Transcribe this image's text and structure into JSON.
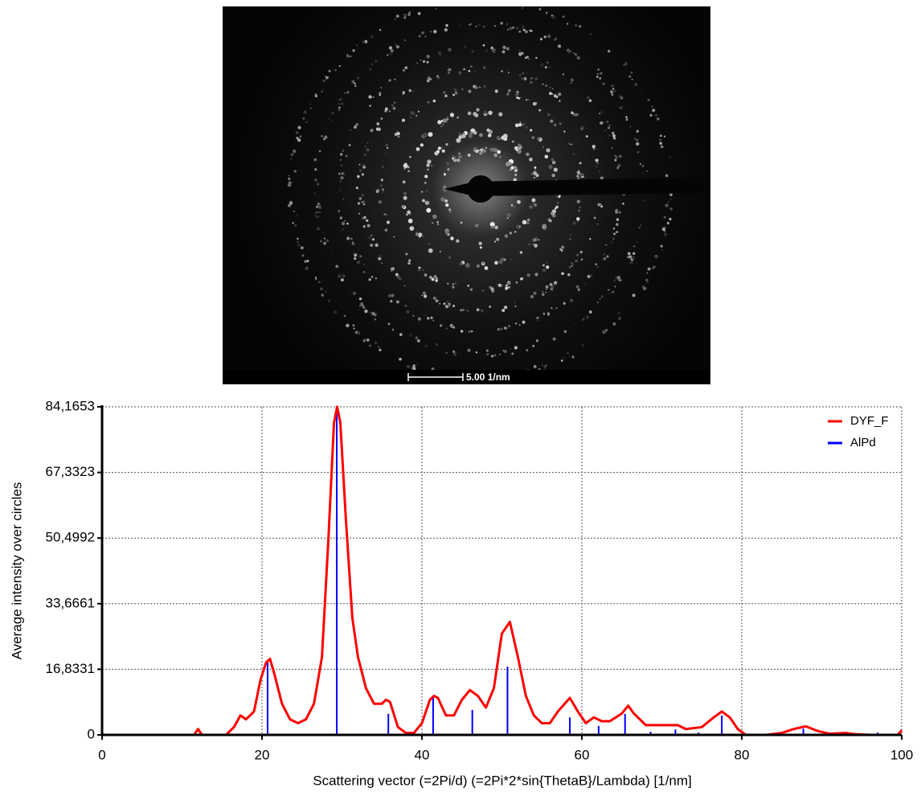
{
  "image": {
    "scale_bar": "5.00 1/nm"
  },
  "chart_data": {
    "type": "line",
    "xlabel": "Scattering vector (=2Pi/d) (=2Pi*2*sin{ThetaB}/Lambda) [1/nm]",
    "ylabel": "Average intensity over circles",
    "xlim": [
      0,
      100
    ],
    "ylim": [
      0,
      84.1653
    ],
    "xticks": [
      0,
      20,
      40,
      60,
      80,
      100
    ],
    "yticks": [
      0,
      {
        "value": 16.8331,
        "label": "16,8331"
      },
      {
        "value": 33.6661,
        "label": "33,6661"
      },
      {
        "value": 50.4992,
        "label": "50,4992"
      },
      {
        "value": 67.3323,
        "label": "67,3323"
      },
      {
        "value": 84.1653,
        "label": "84,1653"
      }
    ],
    "grid": true,
    "legend": "upper right",
    "series": [
      {
        "name": "DYF_F",
        "color": "#ff0000",
        "style": "line",
        "x": [
          11.5,
          12,
          12.5,
          15.5,
          16.5,
          17.3,
          18,
          19,
          19.8,
          20.5,
          21,
          21.5,
          22.5,
          23.5,
          24.5,
          25.5,
          26.5,
          27.5,
          28.3,
          29,
          29.4,
          29.8,
          30.5,
          31.3,
          32,
          33,
          34,
          35,
          35.5,
          36,
          37,
          38,
          39,
          40,
          41,
          41.5,
          42,
          43,
          44,
          45,
          46,
          47,
          48,
          49,
          50,
          51,
          52,
          53,
          54,
          55,
          56,
          57,
          58.5,
          59.5,
          60.5,
          61.5,
          62.5,
          63.5,
          65,
          65.8,
          66.5,
          68,
          70,
          72,
          73,
          75,
          76.5,
          77.5,
          78.5,
          79.5,
          80.5,
          83,
          85,
          86.5,
          88,
          89.5,
          91,
          93,
          94,
          96,
          99.5,
          100
        ],
        "values": [
          0,
          1.5,
          0,
          0,
          2,
          5,
          4,
          6,
          14,
          18.5,
          19.5,
          16,
          8,
          4,
          3,
          4,
          8,
          20,
          50,
          80,
          84.2,
          80,
          55,
          30,
          20,
          12,
          8,
          8,
          9,
          8.5,
          2,
          0.5,
          0.5,
          3,
          9,
          10,
          9.5,
          5,
          5,
          9,
          11.5,
          10,
          7,
          12,
          26,
          29,
          20,
          10,
          5,
          3,
          3,
          6,
          9.5,
          6,
          3,
          4.5,
          3.5,
          3.5,
          5.5,
          7.5,
          5.5,
          2.5,
          2.5,
          2.5,
          1.5,
          2,
          4.5,
          6,
          4.5,
          1.5,
          0,
          0,
          0.5,
          1.5,
          2.2,
          1,
          0.3,
          0.5,
          0.2,
          0,
          0,
          1.2
        ]
      },
      {
        "name": "AlPd",
        "color": "#0000ff",
        "style": "stem",
        "x": [
          20.7,
          29.35,
          35.8,
          41.4,
          46.3,
          50.7,
          58.5,
          62.1,
          65.4,
          68.6,
          71.7,
          74.6,
          77.5,
          87.7,
          97.0
        ],
        "values": [
          19.0,
          83.3,
          5.4,
          9.9,
          6.4,
          17.5,
          4.5,
          2.3,
          5.4,
          0.8,
          1.4,
          0.6,
          5.0,
          1.6,
          0.6
        ]
      }
    ]
  }
}
